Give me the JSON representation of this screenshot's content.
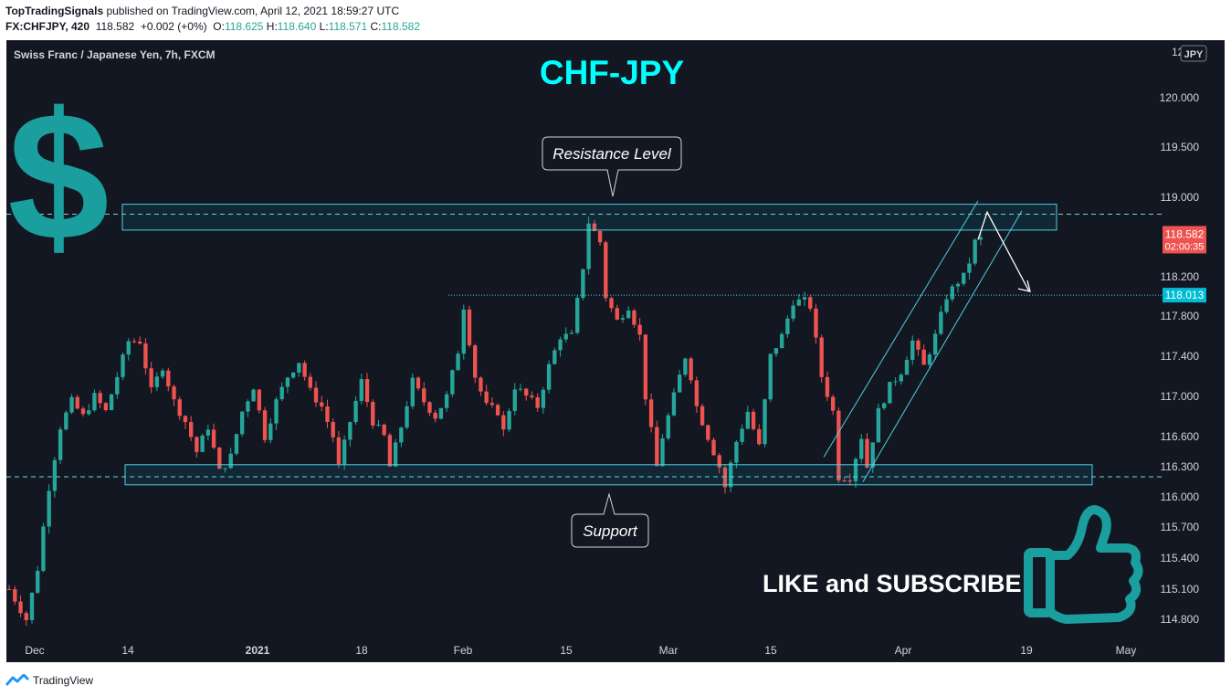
{
  "header": {
    "publisher": "TopTradingSignals",
    "published_line": " published on TradingView.com, April 12, 2021 18:59:27 UTC",
    "symbol": "FX:CHFJPY, 420",
    "last": "118.582",
    "change": "+0.002 (+0%)",
    "o_label": "O:",
    "o": "118.625",
    "h_label": "H:",
    "h": "118.640",
    "l_label": "L:",
    "l": "118.571",
    "c_label": "C:",
    "c": "118.582"
  },
  "chart_title_line": "Swiss Franc / Japanese Yen, 7h, FXCM",
  "currency_badge": "JPY",
  "footer_brand": "TradingView",
  "annotations": {
    "title": "CHF-JPY",
    "resistance": "Resistance Level",
    "support": "Support",
    "cta": "LIKE and SUBSCRIBE",
    "dollar": "$",
    "price_tag": "118.582",
    "price_timer": "02:00:35",
    "level_tag": "118.013"
  },
  "colors": {
    "background": "#131722",
    "up": "#26a69a",
    "down": "#ef5350",
    "accent": "#00ffff",
    "icon": "#1a9e9e",
    "level_tag_bg": "#00bcd4"
  },
  "chart_data": {
    "type": "candlestick",
    "y_ticks": [
      "120.000",
      "119.500",
      "119.000",
      "118.200",
      "117.800",
      "117.400",
      "117.000",
      "116.600",
      "116.300",
      "116.000",
      "115.700",
      "115.400",
      "115.100",
      "114.800"
    ],
    "y_ticks_top_partial": "12",
    "x_ticks": [
      "Dec",
      "14",
      "2021",
      "18",
      "Feb",
      "15",
      "Mar",
      "15",
      "Apr",
      "19",
      "May"
    ],
    "resistance_zone": [
      118.67,
      118.93
    ],
    "support_zone": [
      116.12,
      116.32
    ],
    "horizontal_line": 118.013,
    "dashed_levels": [
      118.83,
      116.2
    ],
    "channel_start": 116.35,
    "channel_end": 118.9,
    "projection": {
      "from": 118.85,
      "to": 118.05
    },
    "last_price": 118.582,
    "close_path": [
      [
        0,
        115.1
      ],
      [
        3,
        114.8
      ],
      [
        5,
        115.3
      ],
      [
        7,
        116.1
      ],
      [
        9,
        116.7
      ],
      [
        11,
        116.95
      ],
      [
        13,
        116.8
      ],
      [
        15,
        117.0
      ],
      [
        17,
        116.85
      ],
      [
        19,
        117.2
      ],
      [
        21,
        117.55
      ],
      [
        23,
        117.55
      ],
      [
        25,
        117.05
      ],
      [
        27,
        117.3
      ],
      [
        29,
        116.95
      ],
      [
        31,
        116.75
      ],
      [
        33,
        116.45
      ],
      [
        35,
        116.7
      ],
      [
        37,
        116.25
      ],
      [
        39,
        116.4
      ],
      [
        41,
        116.85
      ],
      [
        43,
        117.1
      ],
      [
        45,
        116.6
      ],
      [
        47,
        116.95
      ],
      [
        49,
        117.2
      ],
      [
        51,
        117.35
      ],
      [
        53,
        117.05
      ],
      [
        55,
        116.9
      ],
      [
        57,
        116.6
      ],
      [
        58,
        116.3
      ],
      [
        60,
        116.75
      ],
      [
        62,
        117.15
      ],
      [
        64,
        116.75
      ],
      [
        66,
        116.6
      ],
      [
        67,
        116.3
      ],
      [
        69,
        116.7
      ],
      [
        71,
        117.15
      ],
      [
        73,
        116.95
      ],
      [
        75,
        116.8
      ],
      [
        77,
        117.0
      ],
      [
        79,
        117.45
      ],
      [
        80,
        117.9
      ],
      [
        82,
        117.2
      ],
      [
        84,
        116.9
      ],
      [
        86,
        116.85
      ],
      [
        87,
        116.65
      ],
      [
        89,
        117.1
      ],
      [
        91,
        117.0
      ],
      [
        93,
        116.9
      ],
      [
        95,
        117.3
      ],
      [
        97,
        117.6
      ],
      [
        99,
        117.6
      ],
      [
        101,
        118.3
      ],
      [
        102,
        118.75
      ],
      [
        104,
        118.55
      ],
      [
        105,
        118.0
      ],
      [
        107,
        117.75
      ],
      [
        109,
        117.9
      ],
      [
        111,
        117.6
      ],
      [
        112,
        117.0
      ],
      [
        114,
        116.3
      ],
      [
        115,
        116.6
      ],
      [
        117,
        117.0
      ],
      [
        119,
        117.4
      ],
      [
        120,
        117.2
      ],
      [
        121,
        116.9
      ],
      [
        123,
        116.6
      ],
      [
        125,
        116.3
      ],
      [
        126,
        116.1
      ],
      [
        128,
        116.55
      ],
      [
        130,
        116.85
      ],
      [
        132,
        116.5
      ],
      [
        134,
        117.4
      ],
      [
        136,
        117.6
      ],
      [
        138,
        117.95
      ],
      [
        140,
        117.95
      ],
      [
        141,
        117.9
      ],
      [
        143,
        117.2
      ],
      [
        145,
        116.85
      ],
      [
        146,
        116.2
      ],
      [
        148,
        116.2
      ],
      [
        150,
        116.6
      ],
      [
        151,
        116.3
      ],
      [
        153,
        116.85
      ],
      [
        155,
        117.1
      ],
      [
        157,
        117.25
      ],
      [
        159,
        117.55
      ],
      [
        161,
        117.3
      ],
      [
        163,
        117.6
      ],
      [
        165,
        118.0
      ],
      [
        167,
        118.15
      ],
      [
        168,
        118.2
      ],
      [
        169,
        118.35
      ],
      [
        170,
        118.55
      ],
      [
        171,
        118.58
      ]
    ]
  }
}
